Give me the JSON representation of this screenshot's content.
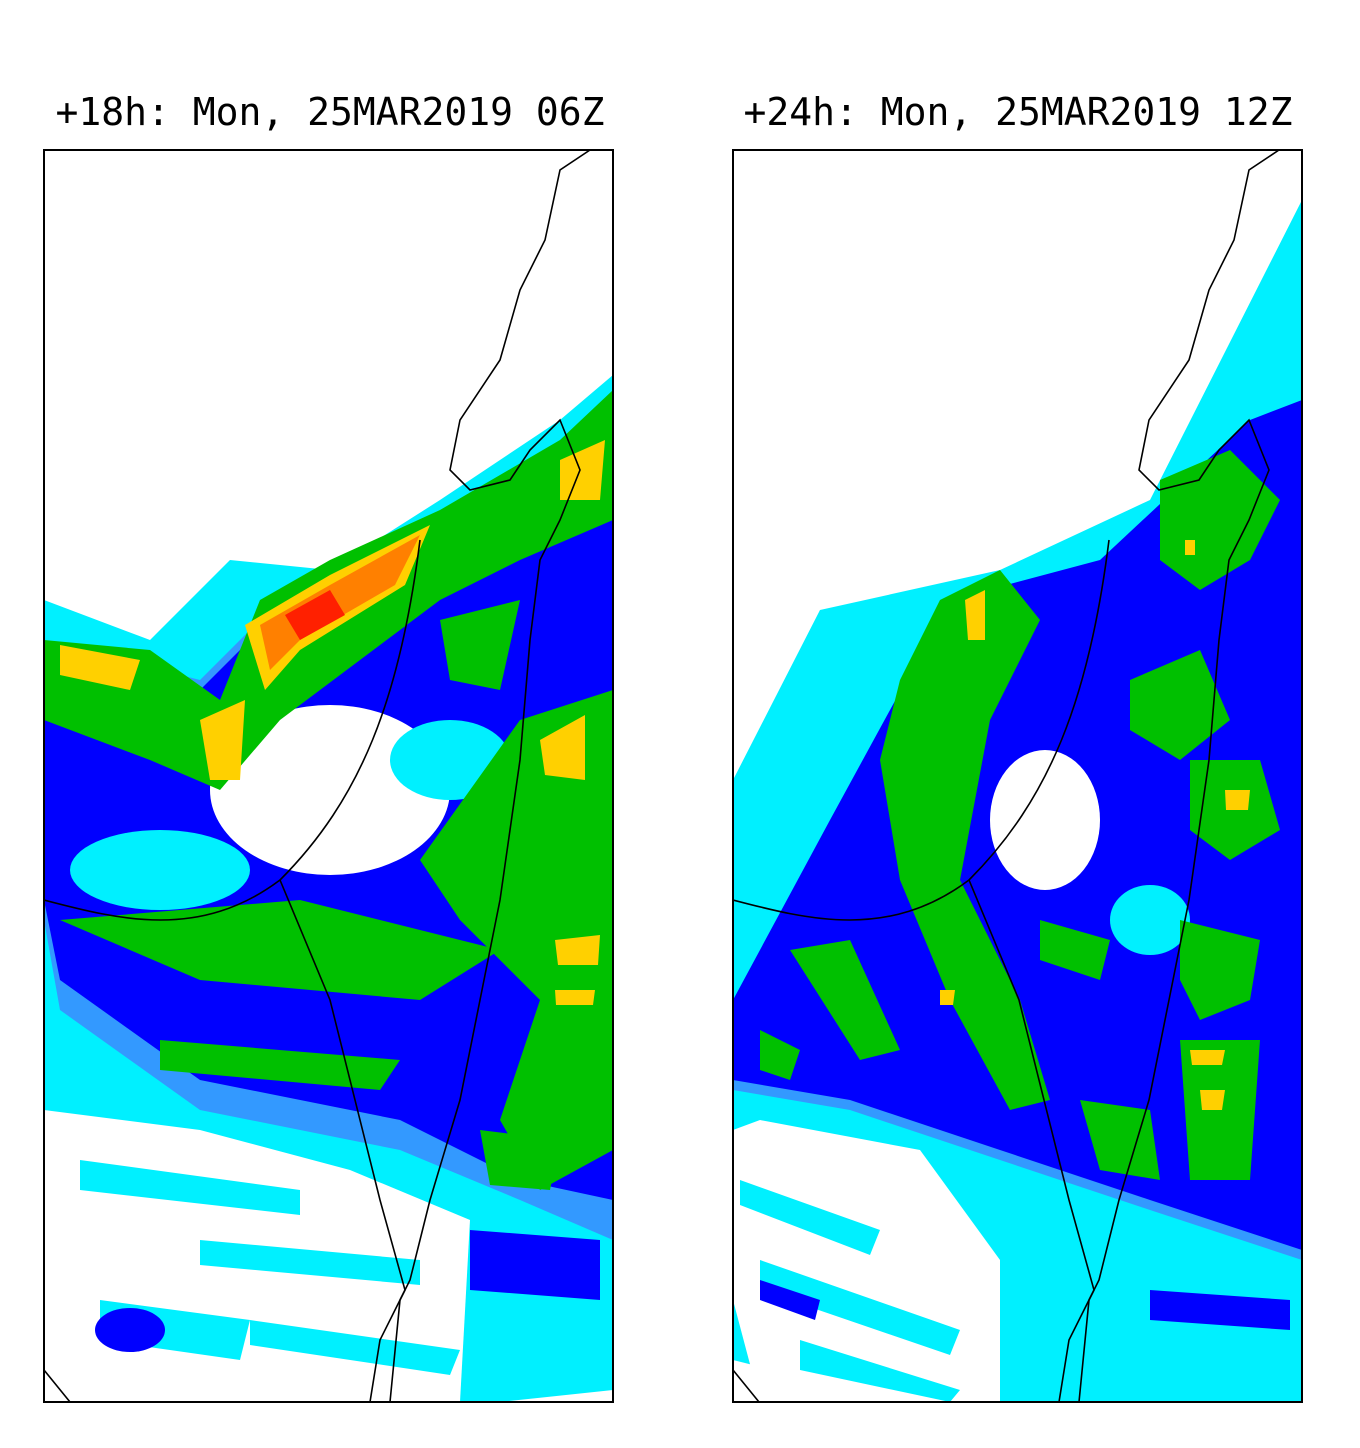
{
  "panels": [
    {
      "title": "+18h: Mon, 25MAR2019 06Z"
    },
    {
      "title": "+24h: Mon, 25MAR2019 12Z"
    }
  ]
}
